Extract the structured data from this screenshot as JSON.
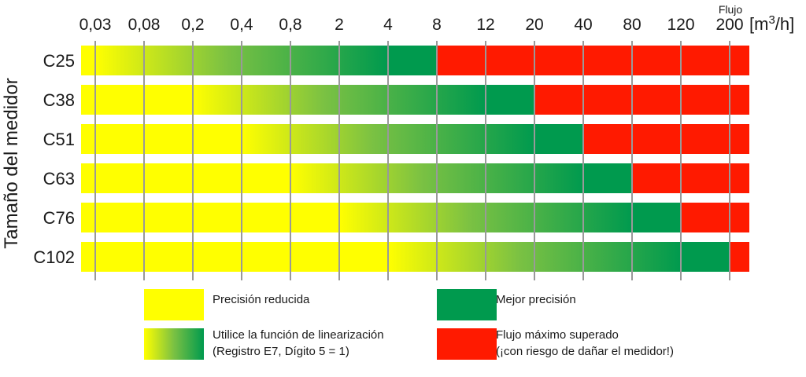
{
  "chart_data": {
    "type": "bar",
    "subtype": "horizontal-range-bands",
    "x_axis_title": "Flujo",
    "x_unit": "[m³/h]",
    "ylabel": "Tamaño del medidor",
    "x_ticks": [
      "0,03",
      "0,08",
      "0,2",
      "0,4",
      "0,8",
      "2",
      "4",
      "8",
      "12",
      "20",
      "40",
      "80",
      "120",
      "200"
    ],
    "x_tick_values": [
      0.03,
      0.08,
      0.2,
      0.4,
      0.8,
      2,
      4,
      8,
      12,
      20,
      40,
      80,
      120,
      200
    ],
    "x_scale": "ordinal (equally spaced tick values)",
    "grid": true,
    "colors": {
      "reduced": "#ffff00",
      "best": "#009a4e",
      "exceeded": "#ff1a00",
      "gradient_mid": "#7ac143"
    },
    "categories": [
      "C25",
      "C38",
      "C51",
      "C63",
      "C76",
      "C102"
    ],
    "rows": [
      {
        "name": "C25",
        "reduced_end": 0.03,
        "linearization_end": 4,
        "best_end": 8,
        "exceeded_end": 200
      },
      {
        "name": "C38",
        "reduced_end": 0.2,
        "linearization_end": 12,
        "best_end": 20,
        "exceeded_end": 200
      },
      {
        "name": "C51",
        "reduced_end": 0.4,
        "linearization_end": 20,
        "best_end": 40,
        "exceeded_end": 200
      },
      {
        "name": "C63",
        "reduced_end": 0.8,
        "linearization_end": 40,
        "best_end": 80,
        "exceeded_end": 200
      },
      {
        "name": "C76",
        "reduced_end": 2,
        "linearization_end": 80,
        "best_end": 120,
        "exceeded_end": 200
      },
      {
        "name": "C102",
        "reduced_end": 4,
        "linearization_end": 120,
        "best_end": 200,
        "exceeded_end": 200
      }
    ],
    "legend_position": "bottom",
    "legend": [
      {
        "key": "reduced",
        "swatch": "solid-yellow",
        "line1": "Precisión reducida",
        "line2": ""
      },
      {
        "key": "best",
        "swatch": "solid-green",
        "line1": "Mejor precisión",
        "line2": ""
      },
      {
        "key": "linearization",
        "swatch": "gradient",
        "line1": "Utilice la función de linearización",
        "line2": "(Registro E7, Dígito 5 = 1)"
      },
      {
        "key": "exceeded",
        "swatch": "solid-red",
        "line1": "Flujo máximo superado",
        "line2": "(¡con riesgo de dañar el medidor!)"
      }
    ]
  }
}
